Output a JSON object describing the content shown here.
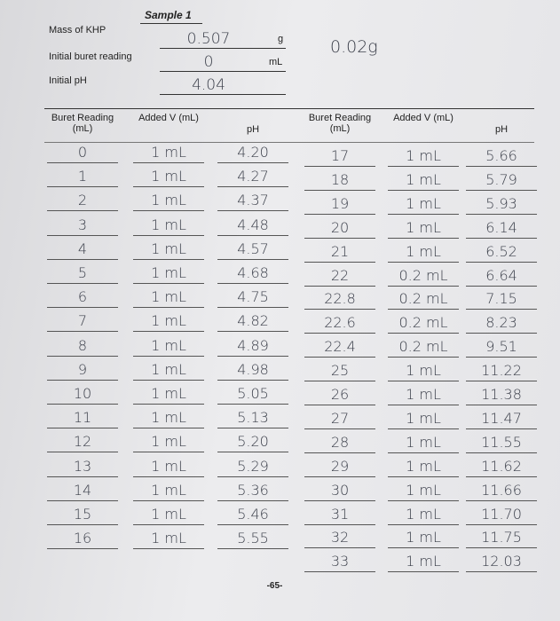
{
  "header": {
    "sample": "Sample 1",
    "fields": [
      {
        "label": "Mass of KHP",
        "value": "0.507",
        "unit": "g"
      },
      {
        "label": "Initial buret reading",
        "value": "0",
        "unit": "mL"
      },
      {
        "label": "Initial pH",
        "value": "4.04"
      }
    ],
    "note": "0.02g"
  },
  "table": {
    "columns": [
      "Buret Reading (mL)",
      "Added V (mL)",
      "pH",
      "Buret Reading (mL)",
      "Added V (mL)",
      "pH"
    ],
    "left_rows": [
      [
        "0",
        "1 mL",
        "4.20"
      ],
      [
        "1",
        "1 mL",
        "4.27"
      ],
      [
        "2",
        "1 mL",
        "4.37"
      ],
      [
        "3",
        "1 mL",
        "4.48"
      ],
      [
        "4",
        "1 mL",
        "4.57"
      ],
      [
        "5",
        "1 mL",
        "4.68"
      ],
      [
        "6",
        "1 mL",
        "4.75"
      ],
      [
        "7",
        "1 mL",
        "4.82"
      ],
      [
        "8",
        "1 mL",
        "4.89"
      ],
      [
        "9",
        "1 mL",
        "4.98"
      ],
      [
        "10",
        "1 mL",
        "5.05"
      ],
      [
        "11",
        "1 mL",
        "5.13"
      ],
      [
        "12",
        "1 mL",
        "5.20"
      ],
      [
        "13",
        "1 mL",
        "5.29"
      ],
      [
        "14",
        "1 mL",
        "5.36"
      ],
      [
        "15",
        "1 mL",
        "5.46"
      ],
      [
        "16",
        "1 mL",
        "5.55"
      ]
    ],
    "right_rows": [
      [
        "17",
        "1 mL",
        "5.66"
      ],
      [
        "18",
        "1 mL",
        "5.79"
      ],
      [
        "19",
        "1 mL",
        "5.93"
      ],
      [
        "20",
        "1 mL",
        "6.14"
      ],
      [
        "21",
        "1 mL",
        "6.52"
      ],
      [
        "22",
        "0.2 mL",
        "6.64"
      ],
      [
        "22.8",
        "0.2 mL",
        "7.15"
      ],
      [
        "22.6",
        "0.2 mL",
        "8.23"
      ],
      [
        "22.4",
        "0.2 mL",
        "9.51"
      ],
      [
        "25",
        "1 mL",
        "11.22"
      ],
      [
        "26",
        "1 mL",
        "11.38"
      ],
      [
        "27",
        "1 mL",
        "11.47"
      ],
      [
        "28",
        "1 mL",
        "11.55"
      ],
      [
        "29",
        "1 mL",
        "11.62"
      ],
      [
        "30",
        "1 mL",
        "11.66"
      ],
      [
        "31",
        "1 mL",
        "11.70"
      ],
      [
        "32",
        "1 mL",
        "11.75"
      ],
      [
        "33",
        "1 mL",
        "12.03"
      ]
    ]
  },
  "footer": {
    "page": "-65-"
  }
}
